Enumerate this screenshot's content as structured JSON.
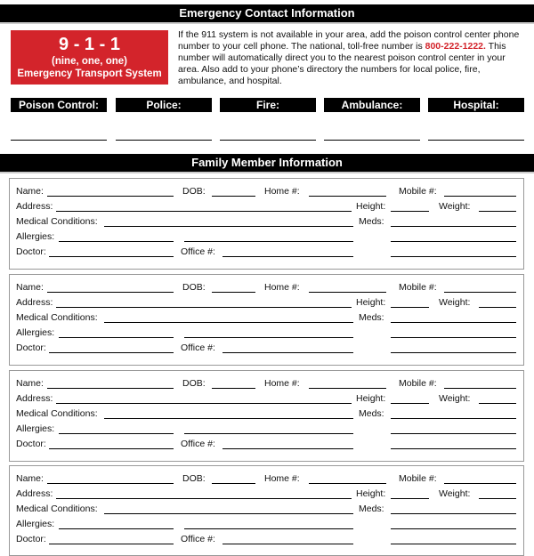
{
  "emergency": {
    "title": "Emergency Contact Information",
    "badge_number": "9 - 1 - 1",
    "badge_spoken": "(nine, one, one)",
    "badge_caption": "Emergency Transport System",
    "intro_before": "If the 911 system is not available in your area, add the poison control center phone number to your cell phone. The national, toll-free number is ",
    "poison_number": "800-222-1222.",
    "intro_after": " This number will automatically direct you to the nearest poison control center in your area. Also add to your phone’s directory the numbers for local police, fire, ambulance, and hospital.",
    "contacts": [
      "Poison Control:",
      "Police:",
      "Fire:",
      "Ambulance:",
      "Hospital:"
    ]
  },
  "family": {
    "title": "Family Member Information",
    "labels": {
      "name": "Name:",
      "dob": "DOB:",
      "home": "Home #:",
      "mobile": "Mobile #:",
      "address": "Address:",
      "height": "Height:",
      "weight": "Weight:",
      "medical": "Medical Conditions:",
      "meds": "Meds:",
      "allergies": "Allergies:",
      "doctor": "Doctor:",
      "office": "Office #:"
    },
    "card_count": 4
  },
  "colors": {
    "accent": "#d3242b",
    "bar": "#000000"
  }
}
